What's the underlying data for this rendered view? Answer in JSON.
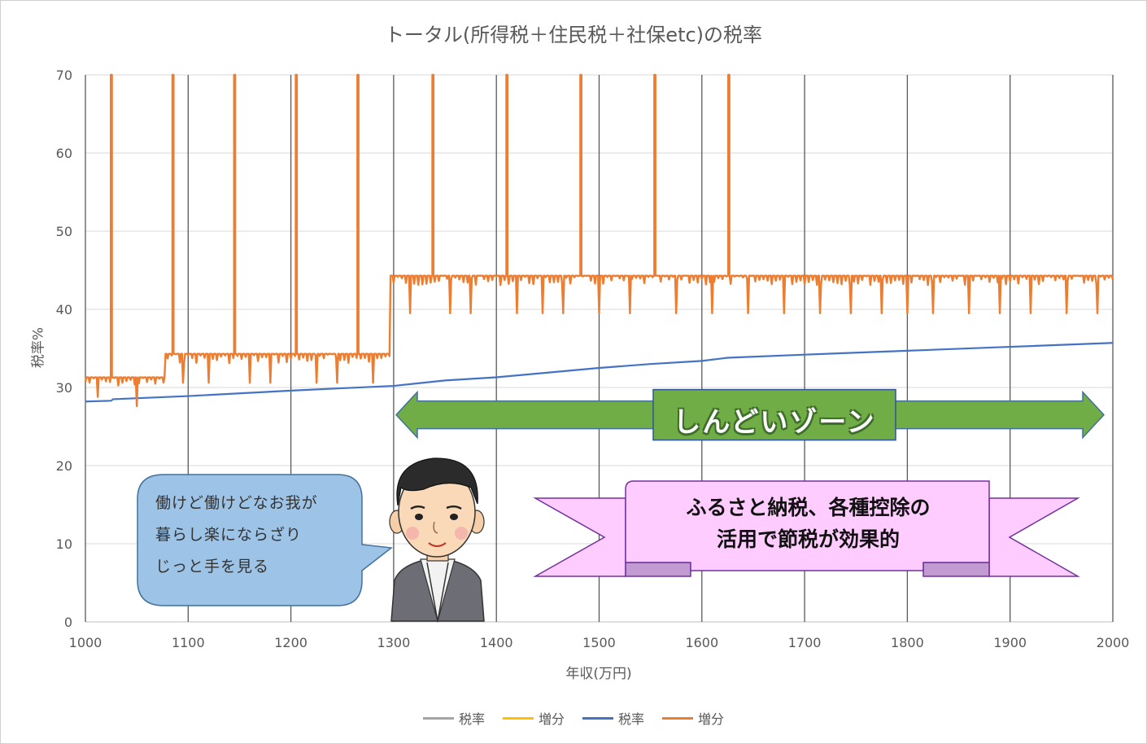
{
  "chart_data": {
    "type": "line",
    "title": "トータル(所得税＋住民税＋社保etc)の税率",
    "xlabel": "年収(万円)",
    "ylabel": "税率%",
    "xlim": [
      1000,
      2000
    ],
    "ylim": [
      0,
      70
    ],
    "x_ticks": [
      "1000",
      "1100",
      "1200",
      "1300",
      "1400",
      "1500",
      "1600",
      "1700",
      "1800",
      "1900",
      "2000"
    ],
    "y_ticks": [
      "0",
      "10",
      "20",
      "30",
      "40",
      "50",
      "60",
      "70"
    ],
    "grid": {
      "vertical": true,
      "horizontal": true
    },
    "legend_position": "bottom",
    "series": [
      {
        "name": "税率",
        "color": "#a5a5a5",
        "values": []
      },
      {
        "name": "増分",
        "color": "#ffc000",
        "values": []
      },
      {
        "name": "税率",
        "color": "#4472c4",
        "x": [
          1000,
          1025,
          1027,
          1100,
          1200,
          1250,
          1300,
          1350,
          1400,
          1450,
          1500,
          1550,
          1600,
          1625,
          1700,
          1800,
          1900,
          2000
        ],
        "values": [
          28.2,
          28.3,
          28.5,
          28.9,
          29.6,
          29.9,
          30.2,
          30.9,
          31.3,
          31.9,
          32.5,
          33.0,
          33.4,
          33.8,
          34.2,
          34.7,
          35.2,
          35.7
        ]
      },
      {
        "name": "増分",
        "color": "#ed7d31",
        "segments": [
          {
            "from": 1000,
            "to": 1078,
            "level": 31.3
          },
          {
            "from": 1078,
            "to": 1297,
            "level": 34.3
          },
          {
            "from": 1297,
            "to": 2000,
            "level": 44.3
          }
        ],
        "spikes_x": [
          1025,
          1085,
          1145,
          1205,
          1265,
          1338,
          1410,
          1482,
          1554,
          1626
        ],
        "spike_level": 70,
        "dips": [
          {
            "x": 1012,
            "y": 28.8
          },
          {
            "x": 1050,
            "y": 27.6
          },
          {
            "x": 1095,
            "y": 30.6
          },
          {
            "x": 1120,
            "y": 30.6
          },
          {
            "x": 1160,
            "y": 30.6
          },
          {
            "x": 1180,
            "y": 30.6
          },
          {
            "x": 1225,
            "y": 30.6
          },
          {
            "x": 1245,
            "y": 30.6
          },
          {
            "x": 1280,
            "y": 30.6
          },
          {
            "x": 1316,
            "y": 39.5
          },
          {
            "x": 1355,
            "y": 39.5
          },
          {
            "x": 1375,
            "y": 39.5
          },
          {
            "x": 1420,
            "y": 39.5
          },
          {
            "x": 1445,
            "y": 39.5
          },
          {
            "x": 1465,
            "y": 39.5
          },
          {
            "x": 1500,
            "y": 39.5
          },
          {
            "x": 1530,
            "y": 39.5
          },
          {
            "x": 1575,
            "y": 39.5
          },
          {
            "x": 1610,
            "y": 39.5
          },
          {
            "x": 1645,
            "y": 39.5
          },
          {
            "x": 1680,
            "y": 39.5
          },
          {
            "x": 1715,
            "y": 39.5
          },
          {
            "x": 1745,
            "y": 39.5
          },
          {
            "x": 1775,
            "y": 39.5
          },
          {
            "x": 1800,
            "y": 39.5
          },
          {
            "x": 1825,
            "y": 39.5
          },
          {
            "x": 1860,
            "y": 39.5
          },
          {
            "x": 1890,
            "y": 39.5
          },
          {
            "x": 1920,
            "y": 39.5
          },
          {
            "x": 1955,
            "y": 39.5
          },
          {
            "x": 1985,
            "y": 39.5
          }
        ]
      }
    ],
    "annotations": {
      "zone_label": "しんどいゾーン",
      "zone_color": "#70ad47",
      "zone_range": [
        1300,
        1990
      ],
      "zone_level": 26.5,
      "banner_lines": [
        "ふるさと納税、各種控除の",
        "活用で節税が効果的"
      ],
      "banner_color": "#ffccff",
      "bubble_lines": [
        "働けど働けどなお我が",
        "暮らし楽にならざり",
        "じっと手を見る"
      ],
      "bubble_color": "#9dc3e6"
    }
  }
}
